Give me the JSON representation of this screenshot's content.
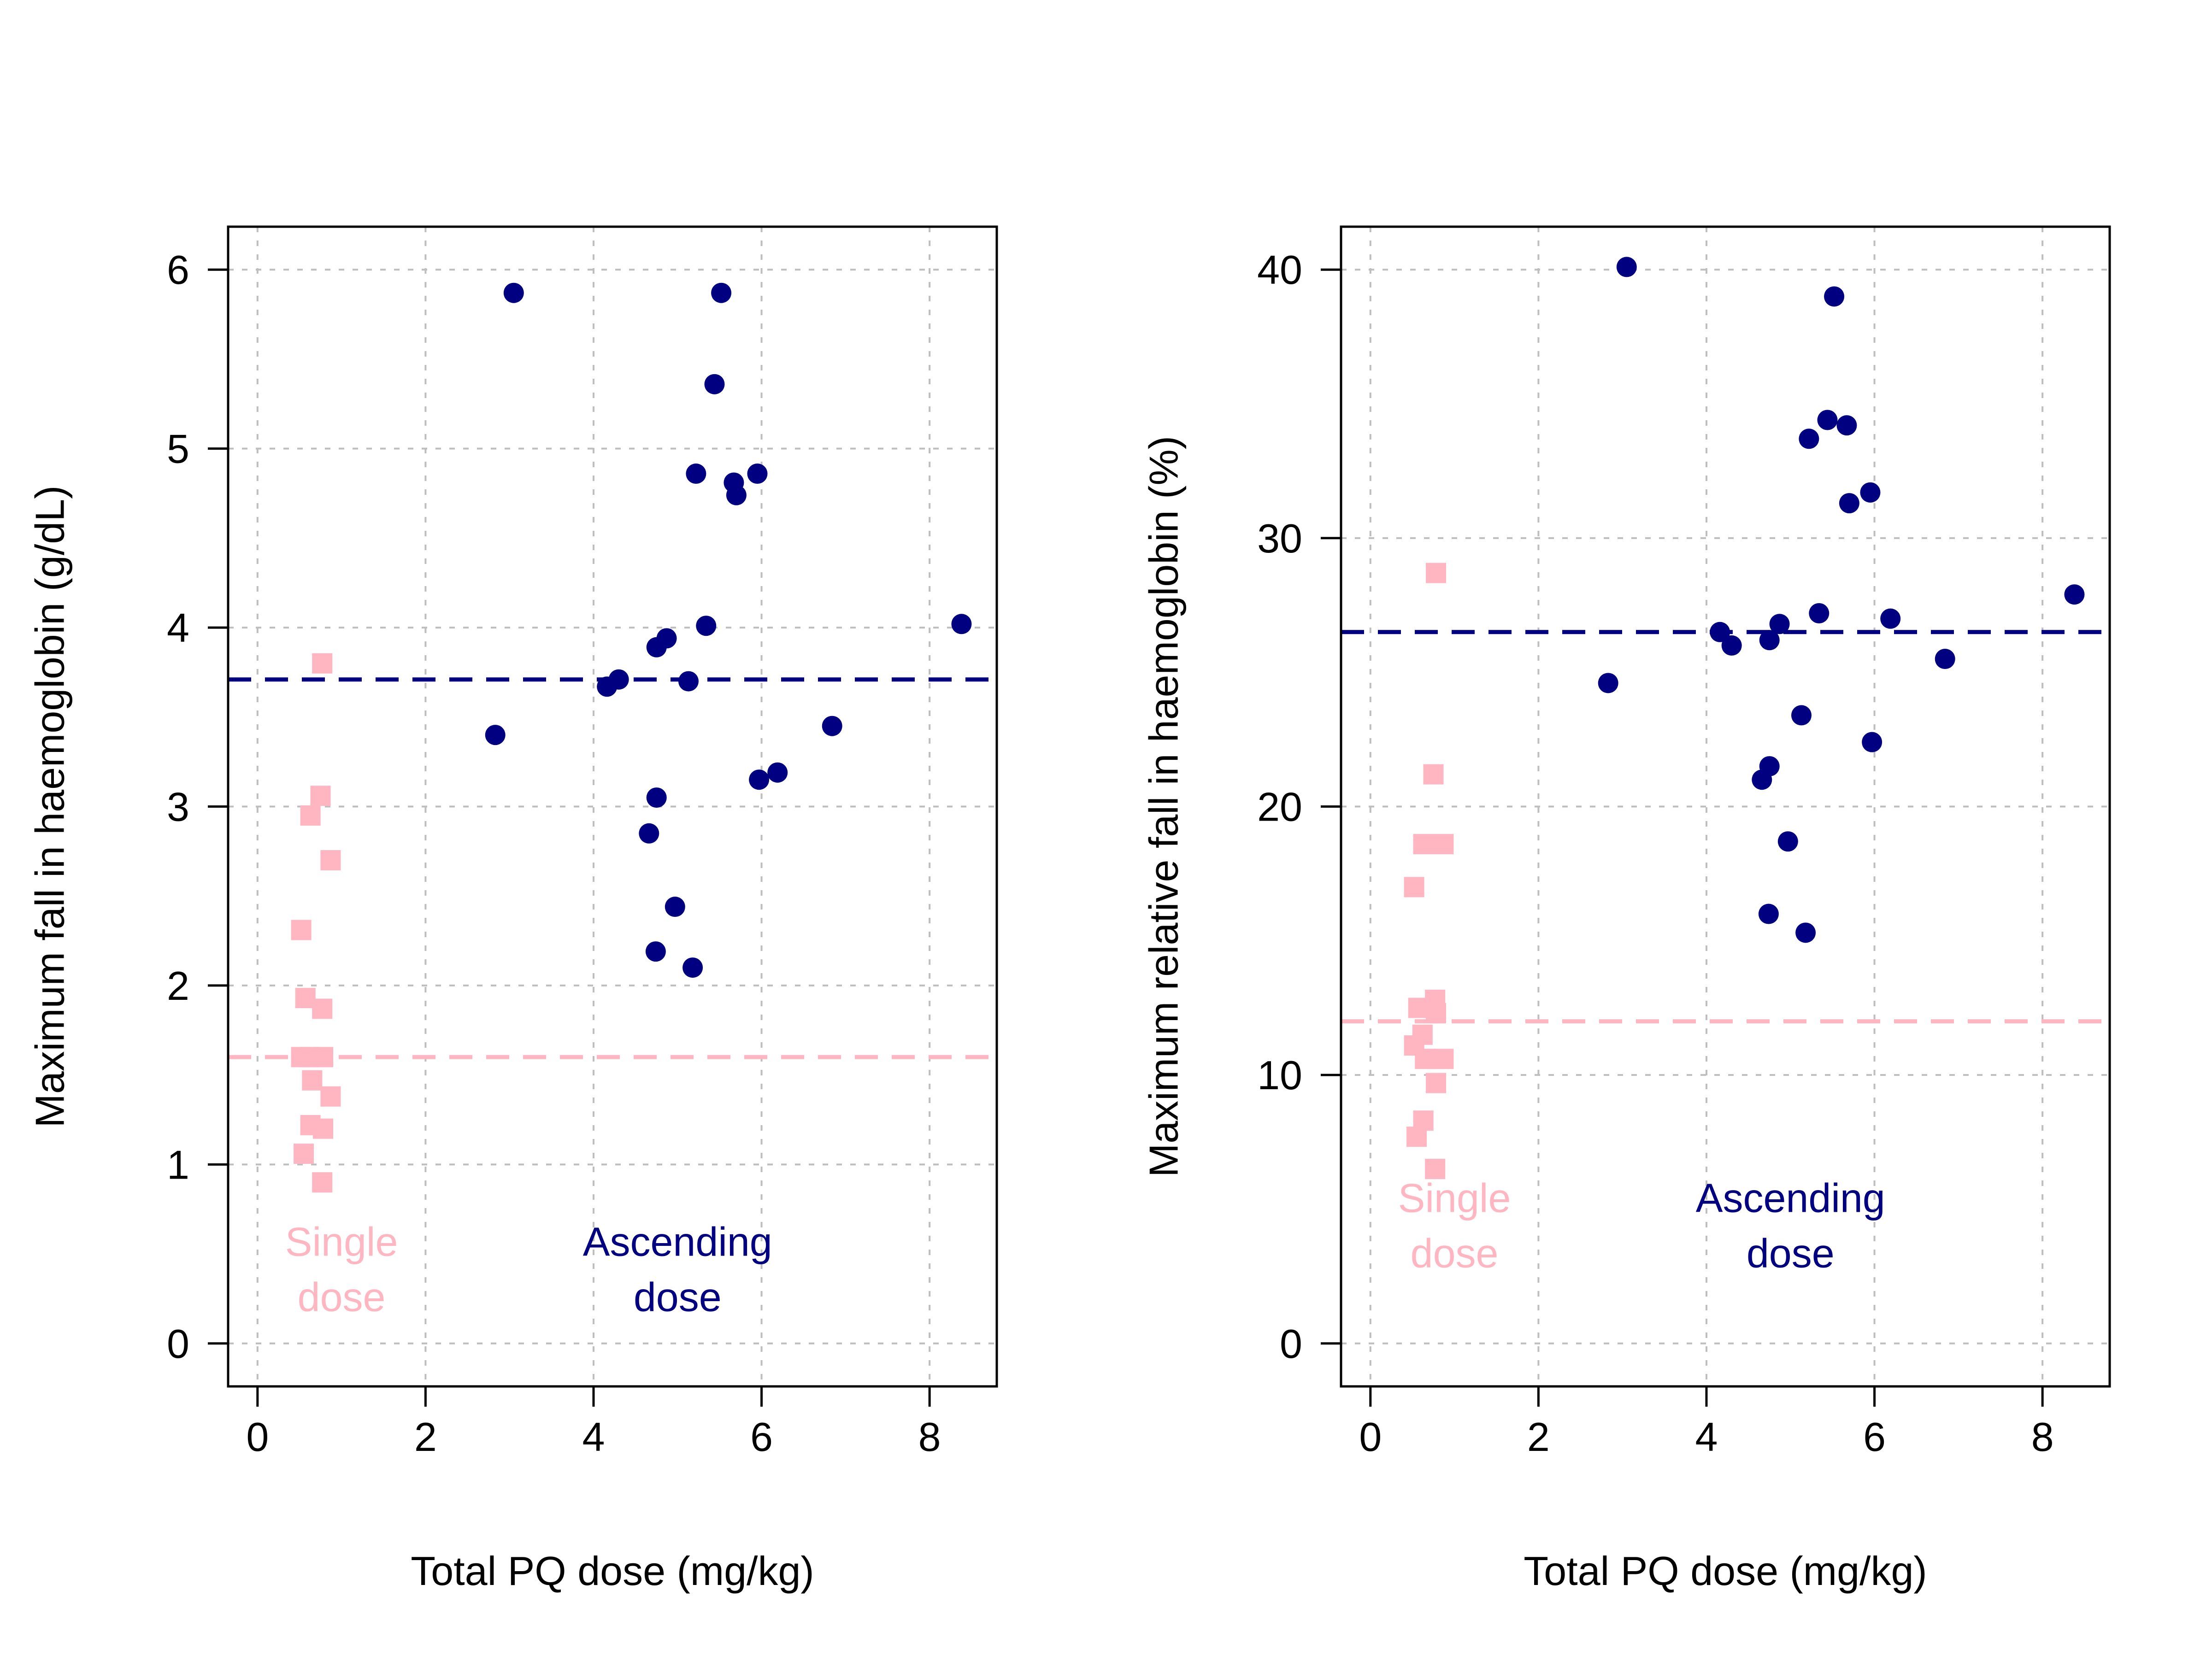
{
  "colors": {
    "single": "#FFB6C1",
    "ascending": "#000080",
    "axis": "#000000",
    "grid": "#BEBEBE"
  },
  "chart_data": [
    {
      "type": "scatter",
      "title": "",
      "xlabel": "Total PQ dose (mg/kg)",
      "ylabel": "Maximum fall in haemoglobin (g/dL)",
      "xlim": [
        -0.35,
        8.8
      ],
      "ylim": [
        -0.24,
        6.24
      ],
      "xticks": [
        0,
        2,
        4,
        6,
        8
      ],
      "yticks": [
        0,
        1,
        2,
        3,
        4,
        5,
        6
      ],
      "grid": true,
      "series": [
        {
          "name": "",
          "marker": "square",
          "color": "#FFB6C1",
          "x": [
            0.77,
            0.75,
            0.63,
            0.87,
            0.52,
            0.57,
            0.77,
            0.52,
            0.62,
            0.78,
            0.65,
            0.87,
            0.78,
            0.63,
            0.55,
            0.77
          ],
          "y": [
            3.8,
            3.06,
            2.95,
            2.7,
            2.31,
            1.93,
            1.87,
            1.6,
            1.6,
            1.6,
            1.47,
            1.38,
            1.2,
            1.22,
            1.06,
            0.9
          ]
        },
        {
          "name": "",
          "marker": "circle",
          "color": "#000080",
          "x": [
            3.05,
            5.52,
            5.44,
            5.22,
            5.95,
            5.67,
            5.7,
            8.38,
            5.34,
            4.87,
            4.75,
            4.3,
            4.16,
            5.13,
            6.84,
            2.83,
            6.19,
            5.97,
            4.75,
            4.66,
            4.97,
            4.74,
            5.18
          ],
          "y": [
            5.87,
            5.87,
            5.36,
            4.86,
            4.86,
            4.81,
            4.74,
            4.02,
            4.01,
            3.94,
            3.89,
            3.71,
            3.67,
            3.7,
            3.45,
            3.4,
            3.19,
            3.15,
            3.05,
            2.85,
            2.44,
            2.19,
            2.1
          ]
        }
      ],
      "hlines": [
        {
          "y": 3.71,
          "color": "#000080",
          "style": "dashed"
        },
        {
          "y": 1.6,
          "color": "#FFB6C1",
          "style": "dashed"
        }
      ],
      "annotations": [
        {
          "lines": [
            "Single",
            "dose"
          ],
          "x": 1.0,
          "y": 0.49,
          "color": "#FFB6C1"
        },
        {
          "lines": [
            "Ascending",
            "dose"
          ],
          "x": 5.0,
          "y": 0.49,
          "color": "#000080"
        }
      ]
    },
    {
      "type": "scatter",
      "title": "",
      "xlabel": "Total PQ dose (mg/kg)",
      "ylabel": "Maximum relative fall in haemoglobin (%)",
      "xlim": [
        -0.35,
        8.8
      ],
      "ylim": [
        -1.6,
        41.6
      ],
      "xticks": [
        0,
        2,
        4,
        6,
        8
      ],
      "yticks": [
        0,
        10,
        20,
        30,
        40
      ],
      "grid": true,
      "series": [
        {
          "name": "",
          "marker": "square",
          "color": "#FFB6C1",
          "x": [
            0.78,
            0.75,
            0.63,
            0.87,
            0.52,
            0.57,
            0.77,
            0.52,
            0.62,
            0.78,
            0.65,
            0.87,
            0.78,
            0.63,
            0.55,
            0.77
          ],
          "y": [
            28.7,
            21.2,
            18.6,
            18.6,
            17.0,
            12.5,
            12.8,
            11.1,
            11.5,
            12.3,
            10.6,
            10.6,
            9.7,
            8.3,
            7.7,
            6.5
          ]
        },
        {
          "name": "",
          "marker": "circle",
          "color": "#000080",
          "x": [
            3.05,
            5.52,
            5.44,
            5.22,
            5.95,
            5.67,
            5.7,
            8.38,
            5.34,
            4.87,
            4.75,
            4.3,
            4.16,
            5.13,
            6.84,
            2.83,
            6.19,
            5.97,
            4.75,
            4.66,
            4.97,
            4.74,
            5.18
          ],
          "y": [
            40.1,
            39.0,
            34.4,
            33.7,
            31.7,
            34.2,
            31.3,
            27.9,
            27.2,
            26.8,
            26.2,
            26.0,
            26.5,
            23.4,
            25.5,
            24.6,
            27.0,
            22.4,
            21.5,
            21.0,
            18.7,
            16.0,
            15.3
          ]
        }
      ],
      "hlines": [
        {
          "y": 26.5,
          "color": "#000080",
          "style": "dashed"
        },
        {
          "y": 12.0,
          "color": "#FFB6C1",
          "style": "dashed"
        }
      ],
      "annotations": [
        {
          "lines": [
            "Single",
            "dose"
          ],
          "x": 1.0,
          "y": 4.9,
          "color": "#FFB6C1"
        },
        {
          "lines": [
            "Ascending",
            "dose"
          ],
          "x": 5.0,
          "y": 4.9,
          "color": "#000080"
        }
      ]
    }
  ]
}
